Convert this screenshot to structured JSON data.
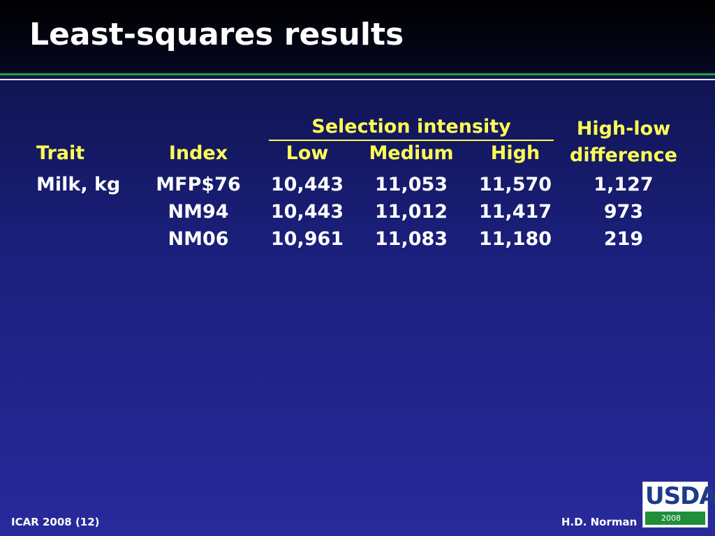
{
  "header": {
    "title": "Least-squares results"
  },
  "table": {
    "group_header": "Selection intensity",
    "columns": [
      "Trait",
      "Index",
      "Low",
      "Medium",
      "High",
      "High-low difference"
    ],
    "trait": "Milk, kg",
    "rows": [
      [
        "MFP$76",
        "10,443",
        "11,053",
        "11,570",
        "1,127"
      ],
      [
        "NM94",
        "10,443",
        "11,012",
        "11,417",
        "973"
      ],
      [
        "NM06",
        "10,961",
        "11,083",
        "11,180",
        "219"
      ]
    ]
  },
  "footer": {
    "left": "ICAR 2008 (12)",
    "right": "H.D. Norman"
  },
  "logo": {
    "text": "USDA",
    "year": "2008"
  }
}
